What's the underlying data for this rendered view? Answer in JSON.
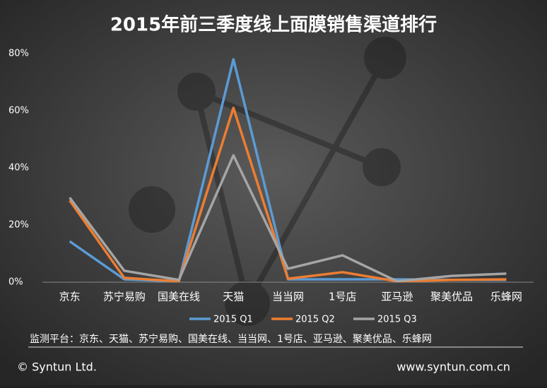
{
  "chart_data": {
    "type": "line",
    "title": "2015年前三季度线上面膜销售渠道排行",
    "categories": [
      "京东",
      "苏宁易购",
      "国美在线",
      "天猫",
      "当当网",
      "1号店",
      "亚马逊",
      "聚美优品",
      "乐蜂网"
    ],
    "series": [
      {
        "name": "2015 Q1",
        "color": "#5b9bd5",
        "values": [
          14.3,
          1,
          0.3,
          78,
          1,
          1,
          1,
          0.8,
          0.8
        ]
      },
      {
        "name": "2015 Q2",
        "color": "#ed7d31",
        "values": [
          28.6,
          1.5,
          0.3,
          61,
          1.2,
          3.5,
          0.3,
          0.8,
          1
        ]
      },
      {
        "name": "2015 Q3",
        "color": "#a5a5a5",
        "values": [
          29.6,
          4,
          0.8,
          44.4,
          4.7,
          9.4,
          0.3,
          2.2,
          3
        ]
      }
    ],
    "ylim": [
      0,
      80
    ],
    "yticks": [
      {
        "value": 0,
        "label": "0%"
      },
      {
        "value": 20,
        "label": "20%"
      },
      {
        "value": 40,
        "label": "40%"
      },
      {
        "value": 60,
        "label": "60%"
      },
      {
        "value": 80,
        "label": "80%"
      }
    ],
    "grid": false,
    "legend": "bottom",
    "note": "监测平台：京东、天猫、苏宁易购、国美在线、当当网、1号店、亚马逊、聚美优品、乐蜂网",
    "copyright": "© Syntun Ltd.",
    "website": "www.syntun.com.cn"
  }
}
